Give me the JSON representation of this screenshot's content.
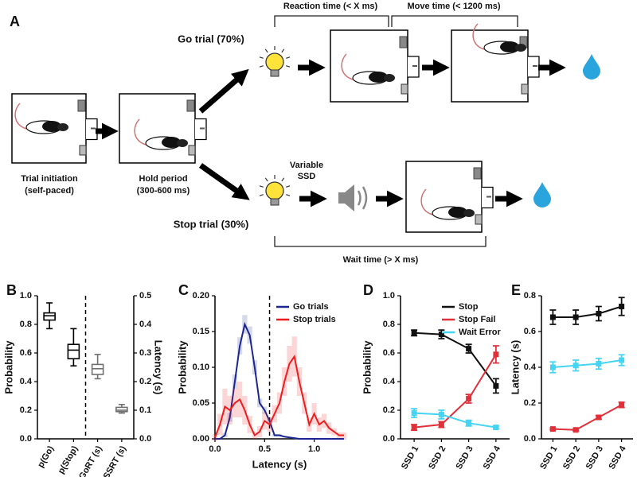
{
  "diagram": {
    "label": "A",
    "go_trial": "Go trial (70%)",
    "stop_trial": "Stop trial (30%)",
    "reaction_time": "Reaction time (< X ms)",
    "move_time": "Move time (< 1200 ms)",
    "wait_time": "Wait time (> X ms)",
    "trial_initiation": [
      "Trial initiation",
      "(self-paced)"
    ],
    "hold_period": [
      "Hold period",
      "(300-600 ms)"
    ],
    "variable_ssd": [
      "Variable",
      "SSD"
    ]
  },
  "chart_data": [
    {
      "label": "B",
      "type": "box",
      "categories": [
        "p(Go)",
        "p(Stop)",
        "GoRT (s)",
        "SSRT (s)"
      ],
      "boxes": [
        {
          "min": 0.77,
          "q1": 0.83,
          "median": 0.86,
          "q3": 0.88,
          "max": 0.95,
          "color": "#000000"
        },
        {
          "min": 0.51,
          "q1": 0.56,
          "median": 0.62,
          "q3": 0.66,
          "max": 0.77,
          "color": "#000000"
        },
        {
          "min": 0.21,
          "q1": 0.225,
          "median": 0.245,
          "q3": 0.26,
          "max": 0.295,
          "color": "#707070",
          "axis": "y2"
        },
        {
          "min": 0.09,
          "q1": 0.095,
          "median": 0.1,
          "q3": 0.11,
          "max": 0.12,
          "color": "#707070",
          "axis": "y2"
        }
      ],
      "ylabel": "Probability",
      "y2label": "Latency (s)",
      "ylim": [
        0,
        1
      ],
      "yticks": [
        {
          "value": 0,
          "label": "0.0"
        },
        0.2,
        0.4,
        0.6,
        0.8,
        {
          "value": 1,
          "label": "1.0"
        }
      ],
      "y2lim": [
        0,
        0.5
      ],
      "y2ticks": [
        {
          "value": 0,
          "label": "0.0"
        },
        0.1,
        0.2,
        0.3,
        0.4,
        0.5
      ]
    },
    {
      "label": "C",
      "type": "line",
      "xlabel": "Latency (s)",
      "ylabel": "Probability",
      "x": [
        0,
        0.05,
        0.1,
        0.15,
        0.2,
        0.25,
        0.3,
        0.35,
        0.4,
        0.45,
        0.5,
        0.55,
        0.6,
        0.65,
        0.7,
        0.75,
        0.8,
        0.85,
        0.9,
        0.95,
        1.0,
        1.05,
        1.1,
        1.15,
        1.2,
        1.25,
        1.3
      ],
      "series": [
        {
          "name": "Go trials",
          "color": "#1b2690",
          "values": [
            0,
            0,
            0.005,
            0.03,
            0.08,
            0.13,
            0.16,
            0.145,
            0.1,
            0.05,
            0.04,
            0.025,
            0.005,
            0.005,
            0.003,
            0.002,
            0.001,
            0,
            0,
            0,
            0,
            0,
            0,
            0,
            0,
            0,
            0
          ],
          "errors": [
            0.001,
            0.001,
            0.003,
            0.006,
            0.01,
            0.012,
            0.013,
            0.012,
            0.01,
            0.006,
            0.005,
            0.004,
            0.002,
            0.002,
            0.001,
            0.001,
            0.001,
            0.001,
            0.001,
            0.001,
            0.001,
            0.001,
            0.001,
            0.001,
            0.001,
            0.001,
            0.001
          ]
        },
        {
          "name": "Stop trials",
          "color": "#ee1c1c",
          "values": [
            0.002,
            0.02,
            0.045,
            0.04,
            0.05,
            0.055,
            0.04,
            0.02,
            0.005,
            0.01,
            0.025,
            0.02,
            0.035,
            0.05,
            0.08,
            0.105,
            0.115,
            0.08,
            0.05,
            0.02,
            0.035,
            0.02,
            0.025,
            0.015,
            0.01,
            0.005,
            0.005
          ],
          "errors": [
            0.005,
            0.015,
            0.025,
            0.02,
            0.02,
            0.025,
            0.02,
            0.012,
            0.005,
            0.008,
            0.012,
            0.01,
            0.012,
            0.015,
            0.02,
            0.025,
            0.028,
            0.02,
            0.015,
            0.01,
            0.015,
            0.01,
            0.01,
            0.008,
            0.005,
            0.004,
            0.004
          ]
        }
      ],
      "xlim": [
        0,
        1.3
      ],
      "xticks": [
        {
          "value": 0,
          "label": "0.0"
        },
        0.5,
        {
          "value": 1,
          "label": "1.0"
        }
      ],
      "ylim": [
        0,
        0.2
      ],
      "yticks": [
        {
          "value": 0,
          "label": "0.00"
        },
        0.05,
        {
          "value": 0.1,
          "label": "0.10"
        },
        0.15,
        {
          "value": 0.2,
          "label": "0.20"
        }
      ],
      "vline": 0.55,
      "legend": "upper right"
    },
    {
      "label": "D",
      "type": "line",
      "ylabel": "Probability",
      "categories": [
        "SSD 1",
        "SSD 2",
        "SSD 3",
        "SSD 4"
      ],
      "series": [
        {
          "name": "Stop",
          "color": "#111111",
          "values": [
            0.74,
            0.73,
            0.63,
            0.37
          ],
          "errors": [
            0.02,
            0.03,
            0.03,
            0.05
          ]
        },
        {
          "name": "Stop Fail",
          "color": "#e0303a",
          "values": [
            0.08,
            0.1,
            0.28,
            0.59
          ],
          "errors": [
            0.02,
            0.02,
            0.03,
            0.06
          ]
        },
        {
          "name": "Wait Error",
          "color": "#45d4f2",
          "values": [
            0.18,
            0.17,
            0.11,
            0.08
          ],
          "errors": [
            0.03,
            0.03,
            0.02,
            0.01
          ]
        }
      ],
      "ylim": [
        0,
        1
      ],
      "yticks": [
        {
          "value": 0,
          "label": "0.0"
        },
        0.2,
        0.4,
        0.6,
        0.8,
        {
          "value": 1,
          "label": "1.0"
        }
      ],
      "legend": "upper right"
    },
    {
      "label": "E",
      "type": "line",
      "ylabel": "Latency (s)",
      "categories": [
        "SSD 1",
        "SSD 2",
        "SSD 3",
        "SSD 4"
      ],
      "series": [
        {
          "color": "#111111",
          "values": [
            0.68,
            0.68,
            0.7,
            0.74
          ],
          "errors": [
            0.04,
            0.04,
            0.04,
            0.05
          ]
        },
        {
          "color": "#45d4f2",
          "values": [
            0.4,
            0.41,
            0.42,
            0.44
          ],
          "errors": [
            0.03,
            0.03,
            0.03,
            0.03
          ]
        },
        {
          "color": "#e0303a",
          "values": [
            0.055,
            0.05,
            0.12,
            0.19
          ],
          "errors": [
            0.005,
            0.005,
            0.01,
            0.015
          ]
        }
      ],
      "ylim": [
        0,
        0.8
      ],
      "yticks": [
        {
          "value": 0,
          "label": "0.0"
        },
        0.2,
        0.4,
        0.6,
        0.8
      ]
    }
  ]
}
